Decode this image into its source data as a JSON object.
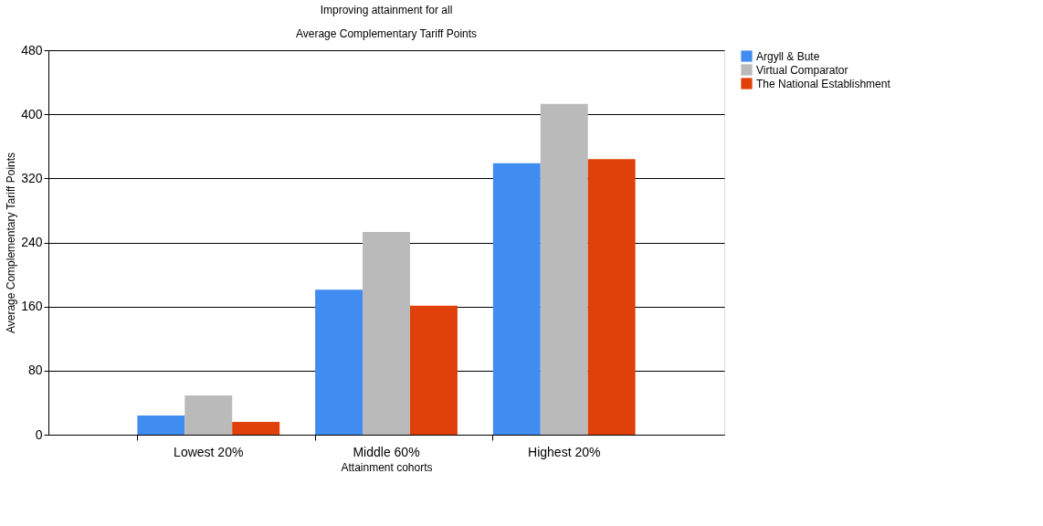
{
  "chart_data": {
    "type": "bar",
    "title": "Improving attainment for all",
    "subtitle": "Average Complementary Tariff Points",
    "xlabel": "Attainment cohorts",
    "ylabel": "Average Complementary Tariff Points",
    "categories": [
      "Lowest 20%",
      "Middle 60%",
      "Highest 20%"
    ],
    "series": [
      {
        "name": "Argyll & Bute",
        "color": "#418cf0",
        "values": [
          24,
          181,
          339
        ]
      },
      {
        "name": "Virtual Comparator",
        "color": "#bababa",
        "values": [
          49,
          253,
          413
        ]
      },
      {
        "name": "The National Establishment",
        "color": "#e0400a",
        "values": [
          16,
          161,
          344
        ]
      }
    ],
    "ylim": [
      0,
      480
    ],
    "yticks": [
      0,
      80,
      160,
      240,
      320,
      400,
      480
    ],
    "grid": "y",
    "legend": "top right"
  }
}
